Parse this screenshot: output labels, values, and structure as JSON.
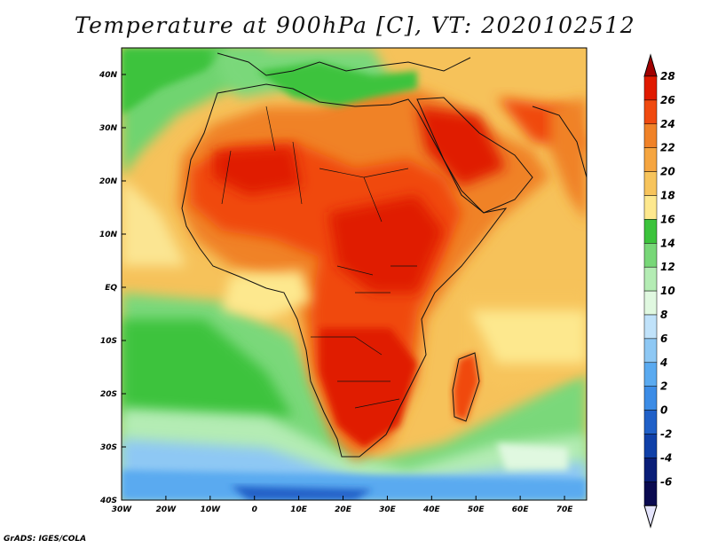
{
  "title": "Temperature at 900hPa [C], VT: 2020102512",
  "credit": "GrADS: IGES/COLA",
  "map": {
    "lat_labels": [
      "40N",
      "30N",
      "20N",
      "10N",
      "EQ",
      "10S",
      "20S",
      "30S",
      "40S"
    ],
    "lon_labels": [
      "30W",
      "20W",
      "10W",
      "0",
      "10E",
      "20E",
      "30E",
      "40E",
      "50E",
      "60E",
      "70E"
    ],
    "lat_range": [
      -40,
      45
    ],
    "lon_range": [
      -30,
      75
    ]
  },
  "colorbar": {
    "labels": [
      "28",
      "26",
      "24",
      "22",
      "20",
      "18",
      "16",
      "14",
      "12",
      "10",
      "8",
      "6",
      "4",
      "2",
      "0",
      "-2",
      "-4",
      "-6"
    ],
    "colors": [
      "#a00000",
      "#e01a00",
      "#f04a10",
      "#f08228",
      "#f5a540",
      "#f7c45c",
      "#fde88e",
      "#3cc33c",
      "#78d778",
      "#b4ecb4",
      "#e0f8e0",
      "#c0e2fa",
      "#8ec8f4",
      "#5aaaf0",
      "#3c8ce6",
      "#2060c8",
      "#1040a8",
      "#0a1e78",
      "#0a0a50",
      "#e4e4fc"
    ]
  }
}
